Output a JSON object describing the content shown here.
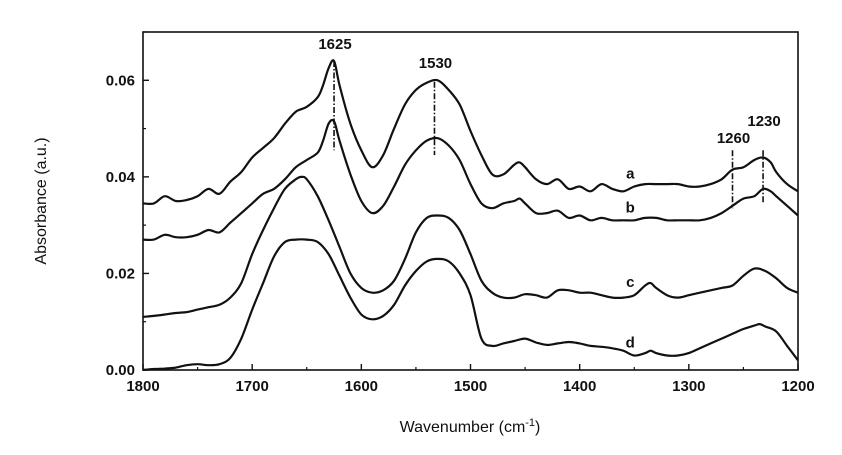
{
  "chart_data": {
    "type": "line",
    "xlabel": "Wavenumber (cm",
    "xlabel_sup": "-1",
    "xlabel_end": ")",
    "ylabel": "Absorbance (a.u.)",
    "xlim": [
      1800,
      1200
    ],
    "ylim": [
      0.0,
      0.07
    ],
    "x_reversed": true,
    "grid": false,
    "legend": "none",
    "x_ticks": [
      1800,
      1700,
      1600,
      1500,
      1400,
      1300,
      1200
    ],
    "x_tick_labels": [
      "1800",
      "1700",
      "1600",
      "1500",
      "1400",
      "1300",
      "1200"
    ],
    "y_ticks": [
      0.0,
      0.02,
      0.04,
      0.06
    ],
    "y_tick_labels": [
      "0.00",
      "0.02",
      "0.04",
      "0.06"
    ],
    "annotations": [
      {
        "text": "1625",
        "x": 1625
      },
      {
        "text": "1530",
        "x": 1533
      },
      {
        "text": "1260",
        "x": 1260
      },
      {
        "text": "1230",
        "x": 1232
      }
    ],
    "series": [
      {
        "name": "a",
        "x": [
          1800,
          1790,
          1780,
          1770,
          1760,
          1750,
          1740,
          1730,
          1720,
          1710,
          1700,
          1690,
          1680,
          1670,
          1660,
          1650,
          1640,
          1635,
          1630,
          1625,
          1620,
          1610,
          1600,
          1590,
          1580,
          1570,
          1560,
          1550,
          1540,
          1530,
          1520,
          1510,
          1500,
          1490,
          1480,
          1470,
          1460,
          1455,
          1450,
          1440,
          1430,
          1420,
          1410,
          1400,
          1390,
          1380,
          1370,
          1360,
          1350,
          1340,
          1330,
          1320,
          1310,
          1300,
          1290,
          1280,
          1270,
          1260,
          1250,
          1240,
          1232,
          1225,
          1220,
          1210,
          1200
        ],
        "y": [
          0.0345,
          0.0345,
          0.036,
          0.035,
          0.0352,
          0.036,
          0.0375,
          0.0365,
          0.039,
          0.041,
          0.044,
          0.046,
          0.048,
          0.051,
          0.0535,
          0.0545,
          0.0565,
          0.059,
          0.0625,
          0.064,
          0.059,
          0.051,
          0.0455,
          0.042,
          0.0445,
          0.05,
          0.055,
          0.058,
          0.0595,
          0.06,
          0.058,
          0.055,
          0.0495,
          0.0445,
          0.0405,
          0.0405,
          0.0425,
          0.043,
          0.042,
          0.0395,
          0.0385,
          0.0395,
          0.0375,
          0.038,
          0.037,
          0.0385,
          0.0375,
          0.037,
          0.038,
          0.0385,
          0.0385,
          0.0385,
          0.0385,
          0.038,
          0.038,
          0.0385,
          0.0395,
          0.0415,
          0.042,
          0.0435,
          0.044,
          0.043,
          0.041,
          0.0385,
          0.037
        ]
      },
      {
        "name": "b",
        "x": [
          1800,
          1790,
          1780,
          1770,
          1760,
          1750,
          1740,
          1730,
          1720,
          1710,
          1700,
          1690,
          1680,
          1670,
          1660,
          1650,
          1640,
          1635,
          1630,
          1625,
          1620,
          1610,
          1600,
          1590,
          1580,
          1570,
          1560,
          1550,
          1540,
          1530,
          1520,
          1510,
          1500,
          1490,
          1480,
          1470,
          1460,
          1455,
          1450,
          1440,
          1430,
          1420,
          1410,
          1400,
          1390,
          1380,
          1370,
          1360,
          1350,
          1340,
          1330,
          1320,
          1310,
          1300,
          1290,
          1280,
          1270,
          1260,
          1250,
          1240,
          1232,
          1225,
          1220,
          1210,
          1200
        ],
        "y": [
          0.027,
          0.027,
          0.028,
          0.0275,
          0.0275,
          0.028,
          0.029,
          0.0285,
          0.0305,
          0.0325,
          0.0345,
          0.0365,
          0.0375,
          0.0395,
          0.042,
          0.0435,
          0.045,
          0.0475,
          0.051,
          0.0515,
          0.0475,
          0.0405,
          0.035,
          0.0325,
          0.034,
          0.038,
          0.0425,
          0.0455,
          0.0475,
          0.048,
          0.0465,
          0.0435,
          0.0385,
          0.0345,
          0.0335,
          0.0345,
          0.035,
          0.0355,
          0.0345,
          0.0325,
          0.0325,
          0.033,
          0.0315,
          0.032,
          0.031,
          0.0315,
          0.031,
          0.031,
          0.031,
          0.0315,
          0.0315,
          0.031,
          0.031,
          0.031,
          0.031,
          0.0315,
          0.0325,
          0.034,
          0.0355,
          0.036,
          0.0375,
          0.037,
          0.036,
          0.034,
          0.032
        ]
      },
      {
        "name": "c",
        "x": [
          1800,
          1790,
          1780,
          1770,
          1760,
          1750,
          1740,
          1730,
          1720,
          1710,
          1700,
          1690,
          1680,
          1670,
          1660,
          1655,
          1650,
          1640,
          1630,
          1620,
          1610,
          1600,
          1590,
          1580,
          1570,
          1560,
          1550,
          1540,
          1530,
          1520,
          1510,
          1500,
          1490,
          1480,
          1470,
          1460,
          1450,
          1440,
          1430,
          1420,
          1410,
          1400,
          1390,
          1380,
          1370,
          1360,
          1350,
          1340,
          1335,
          1330,
          1320,
          1310,
          1300,
          1290,
          1280,
          1270,
          1260,
          1250,
          1240,
          1230,
          1220,
          1210,
          1200
        ],
        "y": [
          0.011,
          0.0112,
          0.0115,
          0.0118,
          0.012,
          0.0125,
          0.013,
          0.0135,
          0.015,
          0.018,
          0.024,
          0.029,
          0.0335,
          0.0375,
          0.0395,
          0.04,
          0.0395,
          0.036,
          0.031,
          0.0255,
          0.02,
          0.017,
          0.016,
          0.0165,
          0.0185,
          0.023,
          0.0285,
          0.0315,
          0.032,
          0.0315,
          0.029,
          0.024,
          0.0185,
          0.016,
          0.015,
          0.015,
          0.0157,
          0.0155,
          0.015,
          0.0165,
          0.0165,
          0.016,
          0.016,
          0.0155,
          0.015,
          0.015,
          0.0155,
          0.0175,
          0.018,
          0.017,
          0.0155,
          0.015,
          0.0155,
          0.016,
          0.0165,
          0.017,
          0.0175,
          0.0195,
          0.021,
          0.0205,
          0.019,
          0.017,
          0.016
        ]
      },
      {
        "name": "d",
        "x": [
          1800,
          1790,
          1780,
          1770,
          1760,
          1750,
          1740,
          1730,
          1720,
          1710,
          1700,
          1690,
          1680,
          1670,
          1660,
          1650,
          1640,
          1630,
          1620,
          1610,
          1600,
          1590,
          1580,
          1570,
          1560,
          1550,
          1540,
          1530,
          1520,
          1510,
          1500,
          1490,
          1480,
          1470,
          1460,
          1450,
          1440,
          1430,
          1420,
          1410,
          1400,
          1390,
          1380,
          1370,
          1360,
          1350,
          1340,
          1335,
          1330,
          1320,
          1310,
          1300,
          1290,
          1280,
          1270,
          1260,
          1250,
          1240,
          1235,
          1230,
          1220,
          1210,
          1200
        ],
        "y": [
          0.0,
          0.0002,
          0.0003,
          0.0005,
          0.001,
          0.0012,
          0.001,
          0.0012,
          0.0025,
          0.0065,
          0.0125,
          0.018,
          0.0235,
          0.0265,
          0.027,
          0.027,
          0.0265,
          0.024,
          0.0195,
          0.015,
          0.0115,
          0.0105,
          0.0112,
          0.0135,
          0.0175,
          0.0205,
          0.0225,
          0.023,
          0.0225,
          0.02,
          0.0155,
          0.0065,
          0.005,
          0.0055,
          0.006,
          0.0065,
          0.0057,
          0.0052,
          0.0055,
          0.0058,
          0.0055,
          0.005,
          0.0048,
          0.0045,
          0.004,
          0.003,
          0.0035,
          0.004,
          0.0035,
          0.003,
          0.003,
          0.0035,
          0.0045,
          0.0055,
          0.0065,
          0.0075,
          0.0085,
          0.0092,
          0.0095,
          0.009,
          0.008,
          0.005,
          0.002
        ]
      }
    ]
  }
}
